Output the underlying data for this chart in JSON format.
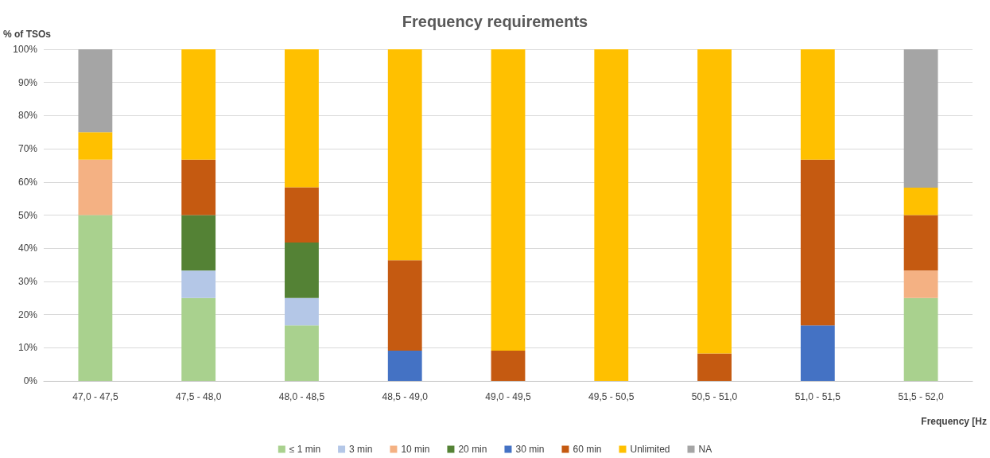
{
  "chart_data": {
    "type": "bar",
    "title": "Frequency requirements",
    "xlabel": "Frequency [Hz",
    "ylabel": "% of TSOs",
    "categories": [
      "47,0 - 47,5",
      "47,5 - 48,0",
      "48,0 - 48,5",
      "48,5 - 49,0",
      "49,0 - 49,5",
      "49,5 - 50,5",
      "50,5 - 51,0",
      "51,0 - 51,5",
      "51,5 - 52,0"
    ],
    "stacked": true,
    "grid": "y",
    "legend": "bottom",
    "ylim": [
      0,
      100
    ],
    "yticks": [
      {
        "value": 0,
        "label": "0%"
      },
      {
        "value": 10,
        "label": "10%"
      },
      {
        "value": 20,
        "label": "20%"
      },
      {
        "value": 30,
        "label": "30%"
      },
      {
        "value": 40,
        "label": "40%"
      },
      {
        "value": 50,
        "label": "50%"
      },
      {
        "value": 60,
        "label": "60%"
      },
      {
        "value": 70,
        "label": "70%"
      },
      {
        "value": 80,
        "label": "80%"
      },
      {
        "value": 90,
        "label": "90%"
      },
      {
        "value": 100,
        "label": "100%"
      }
    ],
    "series": [
      {
        "name": "≤ 1 min",
        "color": "#a9d18e",
        "values": [
          50,
          25,
          16.7,
          null,
          null,
          null,
          null,
          null,
          25
        ]
      },
      {
        "name": "3 min",
        "color": "#b4c7e7",
        "values": [
          null,
          8.3,
          8.3,
          null,
          null,
          null,
          null,
          null,
          null
        ]
      },
      {
        "name": "10 min",
        "color": "#f4b183",
        "values": [
          16.7,
          null,
          null,
          null,
          null,
          null,
          null,
          null,
          8.3
        ]
      },
      {
        "name": "20 min",
        "color": "#548235",
        "values": [
          null,
          16.7,
          16.7,
          null,
          null,
          null,
          null,
          null,
          null
        ]
      },
      {
        "name": "30 min",
        "color": "#4472c4",
        "values": [
          null,
          null,
          null,
          9.1,
          null,
          null,
          null,
          16.7,
          null
        ]
      },
      {
        "name": "60 min",
        "color": "#c55a11",
        "values": [
          null,
          16.7,
          16.7,
          27.3,
          9.1,
          null,
          8.3,
          50,
          16.7
        ]
      },
      {
        "name": "Unlimited",
        "color": "#ffc000",
        "values": [
          8.3,
          33.3,
          41.7,
          63.6,
          90.9,
          100,
          91.7,
          33.3,
          8.3
        ]
      },
      {
        "name": "NA",
        "color": "#a5a5a5",
        "values": [
          25,
          null,
          null,
          null,
          null,
          null,
          null,
          null,
          41.7
        ]
      }
    ]
  }
}
